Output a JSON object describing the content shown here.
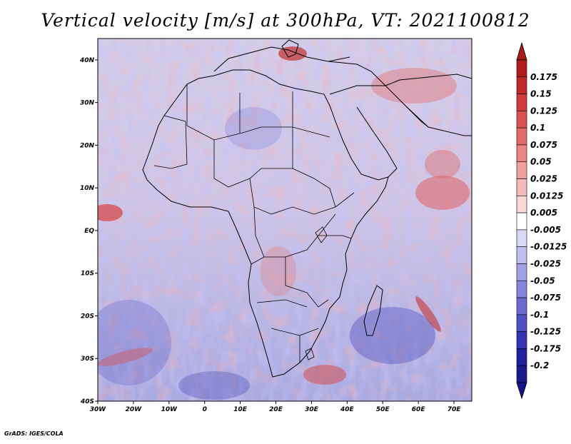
{
  "title": "Vertical velocity [m/s] at 300hPa, VT: 2021100812",
  "credit": "GrADS: IGES/COLA",
  "map": {
    "lon_range": [
      -30,
      75
    ],
    "lat_range": [
      -40,
      45
    ],
    "lon_ticks": [
      {
        "value": -30,
        "label": "30W"
      },
      {
        "value": -20,
        "label": "20W"
      },
      {
        "value": -10,
        "label": "10W"
      },
      {
        "value": 0,
        "label": "0"
      },
      {
        "value": 10,
        "label": "10E"
      },
      {
        "value": 20,
        "label": "20E"
      },
      {
        "value": 30,
        "label": "30E"
      },
      {
        "value": 40,
        "label": "40E"
      },
      {
        "value": 50,
        "label": "50E"
      },
      {
        "value": 60,
        "label": "60E"
      },
      {
        "value": 70,
        "label": "70E"
      }
    ],
    "lat_ticks": [
      {
        "value": 40,
        "label": "40N"
      },
      {
        "value": 30,
        "label": "30N"
      },
      {
        "value": 20,
        "label": "20N"
      },
      {
        "value": 10,
        "label": "10N"
      },
      {
        "value": 0,
        "label": "EQ"
      },
      {
        "value": -10,
        "label": "10S"
      },
      {
        "value": -20,
        "label": "20S"
      },
      {
        "value": -30,
        "label": "30S"
      },
      {
        "value": -40,
        "label": "40S"
      }
    ]
  },
  "colorbar": {
    "labels": [
      "0.175",
      "0.15",
      "0.125",
      "0.1",
      "0.075",
      "0.05",
      "0.025",
      "0.0125",
      "0.005",
      "-0.005",
      "-0.0125",
      "-0.025",
      "-0.05",
      "-0.075",
      "-0.1",
      "-0.125",
      "-0.175",
      "-0.2"
    ],
    "colors": [
      "#b01c1c",
      "#c22a2a",
      "#d13c3c",
      "#dc5252",
      "#e46a6a",
      "#eb8484",
      "#f09f9f",
      "#f5baba",
      "#fad6d6",
      "#ffffff",
      "#d9d9f6",
      "#bdbdef",
      "#a1a1e6",
      "#8585dc",
      "#6a6ad2",
      "#5050c6",
      "#3434b4",
      "#2020a0",
      "#1a1a8c"
    ],
    "top_color": "#a51a1a",
    "bottom_color": "#14148a"
  }
}
